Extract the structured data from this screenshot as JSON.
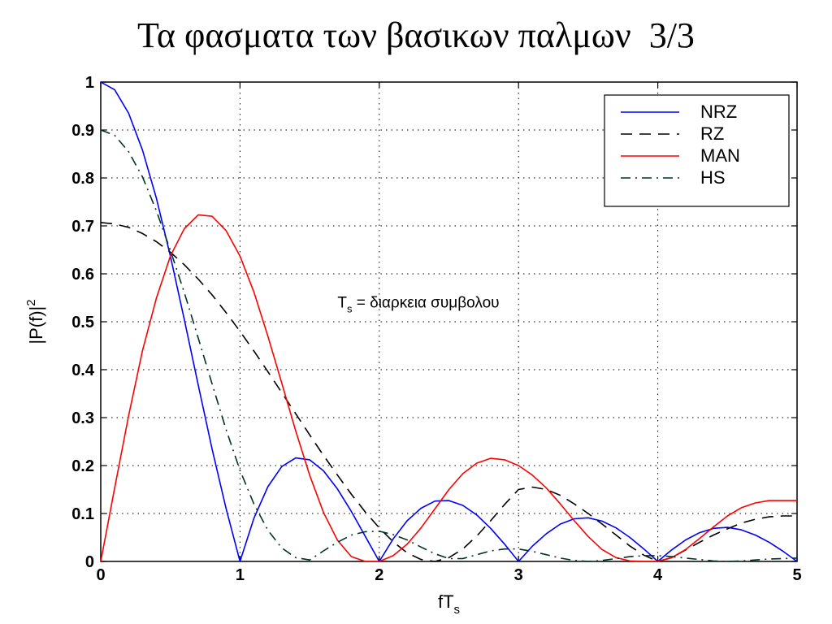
{
  "slide": {
    "title": "Τα φασματα των βασικων παλμων  3/3"
  },
  "chart_data": {
    "type": "line",
    "title": "",
    "xlabel": "fT",
    "xlabel_sub": "s",
    "ylabel": "|P(f)|",
    "ylabel_sup": "2",
    "xlim": [
      0,
      5
    ],
    "ylim": [
      0,
      1
    ],
    "grid": true,
    "legend_position": "top-right",
    "xticks": [
      0,
      1,
      2,
      3,
      4,
      5
    ],
    "yticks": [
      0,
      0.1,
      0.2,
      0.3,
      0.4,
      0.5,
      0.6,
      0.7,
      0.8,
      0.9,
      1
    ],
    "x": [
      0,
      0.1,
      0.2,
      0.3,
      0.4,
      0.5,
      0.6,
      0.7,
      0.8,
      0.9,
      1.0,
      1.1,
      1.2,
      1.3,
      1.4,
      1.5,
      1.6,
      1.7,
      1.8,
      1.9,
      2.0,
      2.1,
      2.2,
      2.3,
      2.4,
      2.5,
      2.6,
      2.7,
      2.8,
      2.9,
      3.0,
      3.1,
      3.2,
      3.3,
      3.4,
      3.5,
      3.6,
      3.7,
      3.8,
      3.9,
      4.0,
      4.1,
      4.2,
      4.3,
      4.4,
      4.5,
      4.6,
      4.7,
      4.8,
      4.9,
      5.0
    ],
    "series": [
      {
        "name": "NRZ",
        "color": "#0000ff",
        "dash": "solid",
        "values": [
          1.0,
          0.984,
          0.935,
          0.858,
          0.757,
          0.637,
          0.505,
          0.368,
          0.234,
          0.11,
          0.0,
          0.09,
          0.156,
          0.198,
          0.216,
          0.212,
          0.189,
          0.151,
          0.104,
          0.052,
          0.0,
          0.047,
          0.085,
          0.111,
          0.126,
          0.127,
          0.117,
          0.097,
          0.069,
          0.036,
          0.0,
          0.032,
          0.058,
          0.078,
          0.089,
          0.091,
          0.084,
          0.07,
          0.05,
          0.026,
          0.0,
          0.024,
          0.045,
          0.06,
          0.069,
          0.071,
          0.066,
          0.055,
          0.04,
          0.021,
          0.0
        ]
      },
      {
        "name": "RZ",
        "color": "#000000",
        "dash": "dashed",
        "values": [
          0.707,
          0.704,
          0.697,
          0.684,
          0.667,
          0.645,
          0.619,
          0.589,
          0.556,
          0.519,
          0.48,
          0.439,
          0.396,
          0.352,
          0.308,
          0.264,
          0.221,
          0.18,
          0.14,
          0.103,
          0.07,
          0.041,
          0.018,
          0.004,
          0.0,
          0.008,
          0.026,
          0.053,
          0.085,
          0.119,
          0.15,
          0.155,
          0.15,
          0.138,
          0.12,
          0.1,
          0.078,
          0.055,
          0.032,
          0.013,
          0.0,
          0.008,
          0.024,
          0.04,
          0.055,
          0.068,
          0.08,
          0.088,
          0.093,
          0.095,
          0.095
        ]
      },
      {
        "name": "MAN",
        "color": "#ff0000",
        "dash": "solid",
        "values": [
          0.0,
          0.153,
          0.304,
          0.44,
          0.55,
          0.637,
          0.694,
          0.723,
          0.72,
          0.69,
          0.637,
          0.562,
          0.47,
          0.372,
          0.272,
          0.18,
          0.102,
          0.044,
          0.01,
          0.0,
          0.0,
          0.012,
          0.036,
          0.07,
          0.11,
          0.15,
          0.183,
          0.205,
          0.215,
          0.212,
          0.2,
          0.18,
          0.153,
          0.12,
          0.085,
          0.052,
          0.025,
          0.008,
          0.001,
          0.0,
          0.0,
          0.008,
          0.025,
          0.048,
          0.072,
          0.095,
          0.112,
          0.122,
          0.127,
          0.127,
          0.127
        ]
      },
      {
        "name": "HS",
        "color": "#003322",
        "dash": "dashdot",
        "values": [
          0.9,
          0.889,
          0.855,
          0.802,
          0.731,
          0.649,
          0.561,
          0.466,
          0.37,
          0.275,
          0.19,
          0.12,
          0.065,
          0.028,
          0.008,
          0.003,
          0.022,
          0.04,
          0.055,
          0.062,
          0.063,
          0.056,
          0.045,
          0.03,
          0.016,
          0.006,
          0.006,
          0.014,
          0.022,
          0.026,
          0.026,
          0.021,
          0.014,
          0.007,
          0.002,
          0.0,
          0.002,
          0.006,
          0.01,
          0.012,
          0.012,
          0.01,
          0.007,
          0.004,
          0.001,
          0.0,
          0.001,
          0.003,
          0.005,
          0.006,
          0.007
        ]
      }
    ],
    "annotations": [
      {
        "text": "T",
        "sub": "s",
        "rest": " = διαρκεια συμβολου",
        "x": 1.7,
        "y": 0.54
      }
    ]
  }
}
